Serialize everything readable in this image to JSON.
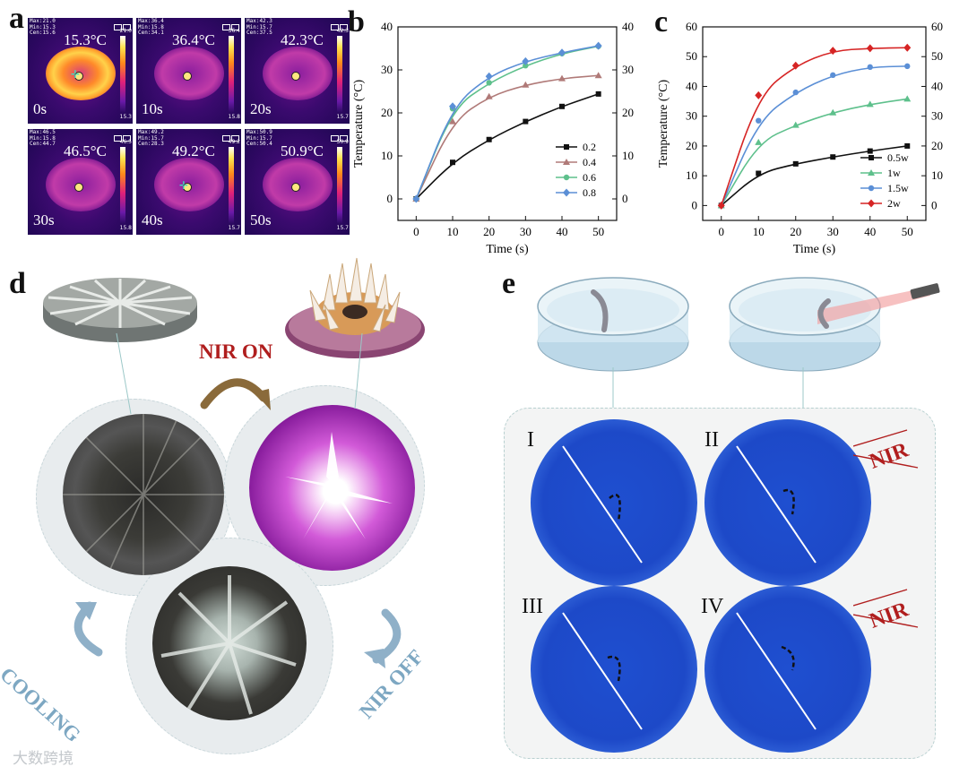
{
  "panel_letters": {
    "a": "a",
    "b": "b",
    "c": "c",
    "d": "d",
    "e": "e"
  },
  "panel_a": {
    "tiles": [
      {
        "hdr": "Max:21.0\nMin:15.3\nCen:15.6",
        "temp": "15.3°C",
        "time": "0s",
        "scale_max": "21.0",
        "scale_min": "15.3"
      },
      {
        "hdr": "Max:36.4\nMin:15.8\nCen:34.1",
        "temp": "36.4°C",
        "time": "10s",
        "scale_max": "36.4",
        "scale_min": "15.8"
      },
      {
        "hdr": "Max:42.3\nMin:15.7\nCen:37.5",
        "temp": "42.3°C",
        "time": "20s",
        "scale_max": "42.3",
        "scale_min": "15.7"
      },
      {
        "hdr": "Max:46.5\nMin:15.8\nCen:44.7",
        "temp": "46.5°C",
        "time": "30s",
        "scale_max": "46.5",
        "scale_min": "15.8"
      },
      {
        "hdr": "Max:49.2\nMin:15.7\nCen:28.3",
        "temp": "49.2°C",
        "time": "40s",
        "scale_max": "49.2",
        "scale_min": "15.7"
      },
      {
        "hdr": "Max:50.9\nMin:15.7\nCen:50.4",
        "temp": "50.9°C",
        "time": "50s",
        "scale_max": "50.9",
        "scale_min": "15.7"
      }
    ]
  },
  "chart_data": [
    {
      "type": "line",
      "panel": "b",
      "xlabel": "Time (s)",
      "ylabel": "Temperature (°C)",
      "xlim": [
        -5,
        55
      ],
      "ylim": [
        -5,
        40
      ],
      "xticks": [
        0,
        10,
        20,
        30,
        40,
        50
      ],
      "yticks": [
        0,
        10,
        20,
        30,
        40
      ],
      "x": [
        0,
        10,
        20,
        30,
        40,
        50
      ],
      "series": [
        {
          "name": "0.2",
          "color": "#111111",
          "marker": "square",
          "values": [
            0,
            8.5,
            13.8,
            18.0,
            21.5,
            24.4
          ]
        },
        {
          "name": "0.4",
          "color": "#b07a78",
          "marker": "triangle",
          "values": [
            0,
            18.0,
            23.8,
            26.5,
            28.0,
            28.7
          ]
        },
        {
          "name": "0.6",
          "color": "#5ec08c",
          "marker": "circle",
          "values": [
            0,
            21.0,
            27.0,
            31.0,
            33.8,
            35.5
          ]
        },
        {
          "name": "0.8",
          "color": "#5b8fd6",
          "marker": "diamond",
          "values": [
            0,
            21.5,
            28.5,
            32.0,
            34.0,
            35.6
          ]
        }
      ]
    },
    {
      "type": "line",
      "panel": "c",
      "xlabel": "Time (s)",
      "ylabel": "Temperature (°C)",
      "xlim": [
        -5,
        55
      ],
      "ylim": [
        -5,
        60
      ],
      "xticks": [
        0,
        10,
        20,
        30,
        40,
        50
      ],
      "yticks": [
        0,
        10,
        20,
        30,
        40,
        50,
        60
      ],
      "x": [
        0,
        10,
        20,
        30,
        40,
        50
      ],
      "series": [
        {
          "name": "0.5w",
          "color": "#111111",
          "marker": "square",
          "values": [
            0,
            10.8,
            14.0,
            16.3,
            18.3,
            20.0
          ]
        },
        {
          "name": "1w",
          "color": "#5ec08c",
          "marker": "triangle",
          "values": [
            0,
            21.2,
            27.0,
            31.2,
            34.0,
            35.8
          ]
        },
        {
          "name": "1.5w",
          "color": "#5b8fd6",
          "marker": "circle",
          "values": [
            0,
            28.5,
            38.0,
            43.8,
            46.5,
            46.8
          ]
        },
        {
          "name": "2w",
          "color": "#d62424",
          "marker": "diamond",
          "values": [
            0,
            37.0,
            47.0,
            52.0,
            52.8,
            53.0
          ]
        }
      ]
    }
  ],
  "panel_d": {
    "nir_on": "NIR ON",
    "nir_off": "NIR OFF",
    "cooling": "COOLING"
  },
  "panel_e": {
    "roman": [
      "I",
      "II",
      "III",
      "IV"
    ],
    "nir_label": "NIR"
  },
  "watermark": "大数跨境"
}
